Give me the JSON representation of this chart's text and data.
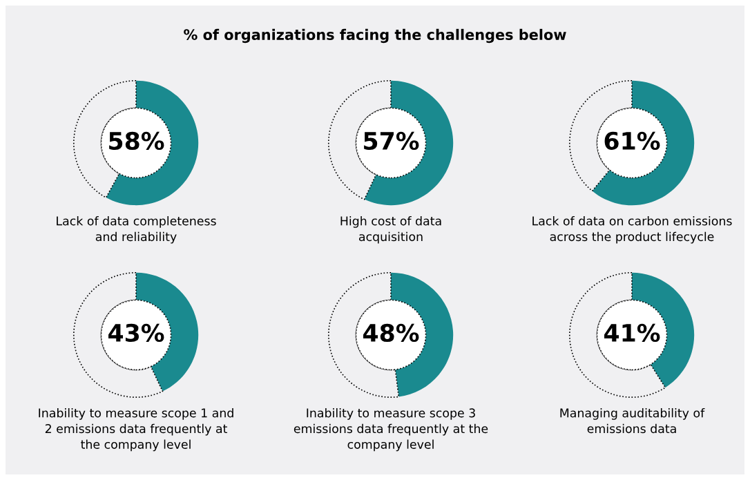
{
  "chart_data": [
    {
      "type": "other",
      "title": "% of organizations facing the challenges below"
    },
    {
      "type": "donut",
      "xlabel": "Lack of data completeness\nand reliability",
      "categories": [
        null,
        null
      ],
      "values": [
        58,
        42
      ],
      "colors": [
        "#1a8a8f",
        "#f0f0f2"
      ],
      "value_labels": [
        "58%",
        null
      ]
    },
    {
      "type": "donut",
      "xlabel": "High cost of data\nacquisition",
      "categories": [
        null,
        null
      ],
      "values": [
        57,
        43
      ],
      "colors": [
        "#1a8a8f",
        "#f0f0f2"
      ],
      "value_labels": [
        "57%",
        null
      ]
    },
    {
      "type": "donut",
      "xlabel": "Lack of data on carbon emissions\nacross the product lifecycle",
      "categories": [
        null,
        null
      ],
      "values": [
        61,
        39
      ],
      "colors": [
        "#1a8a8f",
        "#f0f0f2"
      ],
      "value_labels": [
        "61%",
        null
      ]
    },
    {
      "type": "donut",
      "xlabel": "Inability to measure scope 1 and\n2 emissions data frequently at\nthe company level",
      "categories": [
        null,
        null
      ],
      "values": [
        43,
        57
      ],
      "colors": [
        "#1a8a8f",
        "#f0f0f2"
      ],
      "value_labels": [
        "43%",
        null
      ]
    },
    {
      "type": "donut",
      "xlabel": "Inability to measure scope 3\nemissions data frequently at the\ncompany level",
      "categories": [
        null,
        null
      ],
      "values": [
        48,
        52
      ],
      "colors": [
        "#1a8a8f",
        "#f0f0f2"
      ],
      "value_labels": [
        "48%",
        null
      ]
    },
    {
      "type": "donut",
      "xlabel": "Managing auditability of\nemissions data",
      "categories": [
        null,
        null
      ],
      "values": [
        41,
        59
      ],
      "colors": [
        "#1a8a8f",
        "#f0f0f2"
      ],
      "value_labels": [
        "41%",
        null
      ]
    }
  ]
}
